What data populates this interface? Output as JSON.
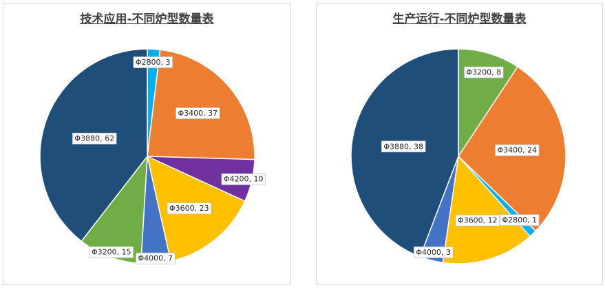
{
  "chart_data": [
    {
      "type": "pie",
      "title": "技术应用-不同炉型数量表",
      "slices": [
        {
          "label": "Φ2800",
          "value": 3,
          "color": "#00b0f0"
        },
        {
          "label": "Φ3400",
          "value": 37,
          "color": "#ed7d31"
        },
        {
          "label": "Φ4200",
          "value": 10,
          "color": "#7030a0"
        },
        {
          "label": "Φ3600",
          "value": 23,
          "color": "#ffc000"
        },
        {
          "label": "Φ4000",
          "value": 7,
          "color": "#4472c4"
        },
        {
          "label": "Φ3200",
          "value": 15,
          "color": "#70ad47"
        },
        {
          "label": "Φ3880",
          "value": 62,
          "color": "#1f4e79"
        }
      ],
      "legend": "none"
    },
    {
      "type": "pie",
      "title": "生产运行-不同炉型数量表",
      "slices": [
        {
          "label": "Φ3200",
          "value": 8,
          "color": "#70ad47"
        },
        {
          "label": "Φ3400",
          "value": 24,
          "color": "#ed7d31"
        },
        {
          "label": "Φ2800",
          "value": 1,
          "color": "#00b0f0"
        },
        {
          "label": "Φ3600",
          "value": 12,
          "color": "#ffc000"
        },
        {
          "label": "Φ4000",
          "value": 3,
          "color": "#4472c4"
        },
        {
          "label": "Φ3880",
          "value": 38,
          "color": "#1f4e79"
        }
      ],
      "legend": "none"
    }
  ]
}
